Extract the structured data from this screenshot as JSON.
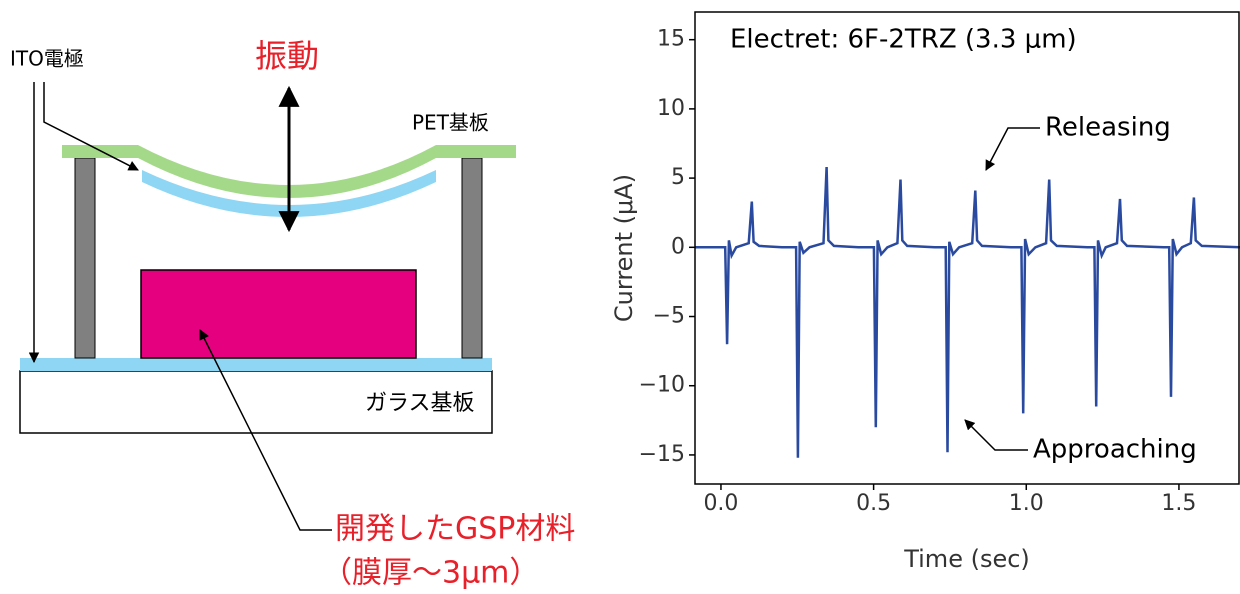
{
  "diagram": {
    "ito_label": "ITO電極",
    "vibration_label": "振動",
    "pet_label": "PET基板",
    "glass_label": "ガラス基板",
    "gsp_label": "開発したGSP材料",
    "gsp_thickness": "（膜厚～3μm）"
  },
  "chart_data": {
    "type": "line",
    "annotations": [
      "Electret: 6F-2TRZ (3.3 μm)",
      "Releasing",
      "Approaching"
    ],
    "x_label": "Time (sec)",
    "y_label": "Current (μA)",
    "color": "#2a4aa0",
    "xlim": [
      -0.085,
      1.7
    ],
    "ylim": [
      -17.1,
      17.0
    ],
    "xticks": [
      {
        "value": 0,
        "label": "0.0"
      },
      0.5,
      {
        "value": 1,
        "label": "1.0"
      },
      1.5
    ],
    "yticks": [
      {
        "value": -15,
        "label": "−15"
      },
      {
        "value": -10,
        "label": "−10"
      },
      {
        "value": -5,
        "label": "−5"
      },
      0,
      5,
      10,
      15
    ],
    "x": [
      -0.085,
      0.014,
      0.02,
      0.026,
      0.035,
      0.05,
      0.091,
      0.101,
      0.107,
      0.125,
      0.2,
      0.246,
      0.252,
      0.258,
      0.27,
      0.29,
      0.336,
      0.346,
      0.352,
      0.37,
      0.45,
      0.501,
      0.507,
      0.513,
      0.525,
      0.545,
      0.578,
      0.588,
      0.594,
      0.61,
      0.7,
      0.736,
      0.742,
      0.748,
      0.76,
      0.78,
      0.823,
      0.833,
      0.839,
      0.855,
      0.95,
      0.984,
      0.99,
      0.996,
      1.008,
      1.03,
      1.065,
      1.075,
      1.081,
      1.1,
      1.2,
      1.223,
      1.229,
      1.235,
      1.247,
      1.26,
      1.297,
      1.307,
      1.313,
      1.33,
      1.45,
      1.468,
      1.474,
      1.48,
      1.492,
      1.51,
      1.539,
      1.549,
      1.555,
      1.575,
      1.7
    ],
    "values": [
      0,
      0,
      -7,
      0.5,
      -0.6,
      0,
      0.3,
      3.3,
      0.4,
      0.1,
      0,
      0,
      -15.2,
      0.4,
      -0.4,
      0,
      0.3,
      5.8,
      0.5,
      0.1,
      0,
      0,
      -13,
      0.5,
      -0.5,
      0,
      0.3,
      4.9,
      0.5,
      0.1,
      0,
      0,
      -14.8,
      0.4,
      -0.5,
      0,
      0.3,
      4.1,
      0.5,
      0.1,
      0,
      0,
      -12,
      0.6,
      -0.5,
      0,
      0.3,
      4.9,
      0.5,
      0.1,
      0,
      0,
      -11.5,
      0.5,
      -0.6,
      0,
      0.3,
      3.5,
      0.5,
      0.1,
      0,
      0,
      -10.8,
      0.6,
      -0.5,
      0,
      0.3,
      3.6,
      0.5,
      0.1,
      0
    ]
  }
}
